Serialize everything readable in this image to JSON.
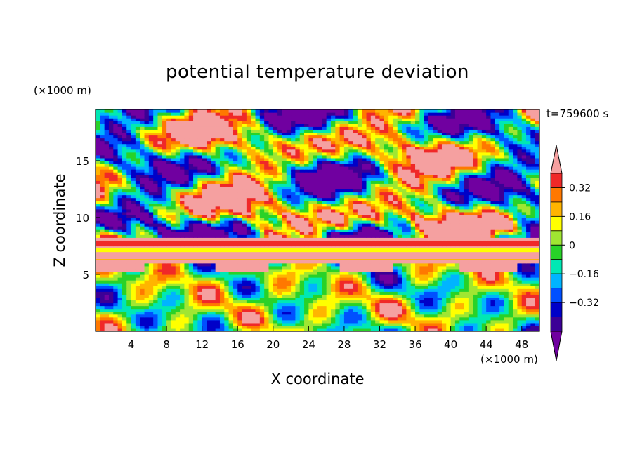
{
  "chart_data": {
    "type": "heatmap",
    "title": "potential temperature deviation",
    "xlabel": "X coordinate",
    "ylabel": "Z coordinate",
    "x_unit": "(×1000 m)",
    "y_unit": "(×1000 m)",
    "time_label": "t=759600 s",
    "xlim": [
      0,
      50
    ],
    "ylim": [
      0,
      19.5
    ],
    "x_ticks": [
      4,
      8,
      12,
      16,
      20,
      24,
      28,
      32,
      36,
      40,
      44,
      48
    ],
    "y_ticks": [
      5,
      10,
      15
    ],
    "colorbar": {
      "levels": [
        -0.48,
        -0.4,
        -0.32,
        -0.24,
        -0.16,
        -0.08,
        0,
        0.08,
        0.16,
        0.24,
        0.32,
        0.4,
        0.48
      ],
      "tick_labels": [
        "0.32",
        "0.16",
        "0",
        "−0.16",
        "−0.32"
      ],
      "tick_values": [
        0.32,
        0.16,
        0,
        -0.16,
        -0.32
      ],
      "colors": [
        "#7000a0",
        "#3c0096",
        "#0000c8",
        "#0050ff",
        "#00b4ff",
        "#00e8b4",
        "#28d228",
        "#a0e632",
        "#ffff00",
        "#ffb400",
        "#ff7800",
        "#f02828",
        "#f5a0a0"
      ],
      "extend": "both"
    },
    "band_summary": [
      {
        "z_range": [
          0,
          6
        ],
        "description_values": [
          -0.4,
          0.4
        ]
      },
      {
        "z_range": [
          6.2,
          8.2
        ],
        "description_values": [
          0.48
        ]
      },
      {
        "z_range": [
          8.2,
          19.5
        ],
        "description_values": [
          -0.48,
          0.48
        ]
      }
    ]
  }
}
